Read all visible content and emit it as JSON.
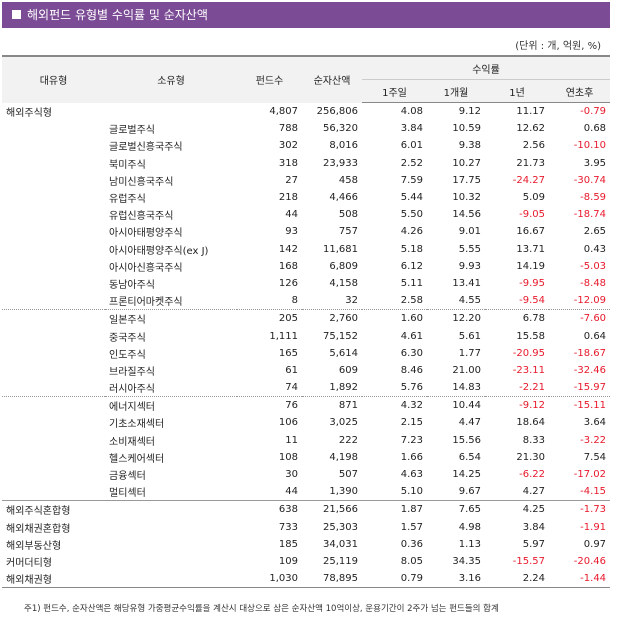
{
  "title": "해외펀드 유형별 수익률 및 순자산액",
  "unit": "(단위 : 개, 억원, %)",
  "headers": {
    "major": "대유형",
    "minor": "소유형",
    "funds": "펀드수",
    "assets": "순자산액",
    "returns": "수익률",
    "w1": "1주일",
    "m1": "1개월",
    "y1": "1년",
    "ytd": "연초후"
  },
  "rows": [
    {
      "cat": "해외주식형",
      "sub": "",
      "funds": "4,807",
      "assets": "256,806",
      "w1": "4.08",
      "m1": "9.12",
      "y1": "11.17",
      "ytd": "-0.79",
      "sep": ""
    },
    {
      "cat": "",
      "sub": "글로벌주식",
      "funds": "788",
      "assets": "56,320",
      "w1": "3.84",
      "m1": "10.59",
      "y1": "12.62",
      "ytd": "0.68",
      "sep": ""
    },
    {
      "cat": "",
      "sub": "글로벌신흥국주식",
      "funds": "302",
      "assets": "8,016",
      "w1": "6.01",
      "m1": "9.38",
      "y1": "2.56",
      "ytd": "-10.10",
      "sep": ""
    },
    {
      "cat": "",
      "sub": "북미주식",
      "funds": "318",
      "assets": "23,933",
      "w1": "2.52",
      "m1": "10.27",
      "y1": "21.73",
      "ytd": "3.95",
      "sep": ""
    },
    {
      "cat": "",
      "sub": "남미신흥국주식",
      "funds": "27",
      "assets": "458",
      "w1": "7.59",
      "m1": "17.75",
      "y1": "-24.27",
      "ytd": "-30.74",
      "sep": ""
    },
    {
      "cat": "",
      "sub": "유럽주식",
      "funds": "218",
      "assets": "4,466",
      "w1": "5.44",
      "m1": "10.32",
      "y1": "5.09",
      "ytd": "-8.59",
      "sep": ""
    },
    {
      "cat": "",
      "sub": "유럽신흥국주식",
      "funds": "44",
      "assets": "508",
      "w1": "5.50",
      "m1": "14.56",
      "y1": "-9.05",
      "ytd": "-18.74",
      "sep": ""
    },
    {
      "cat": "",
      "sub": "아시아태평양주식",
      "funds": "93",
      "assets": "757",
      "w1": "4.26",
      "m1": "9.01",
      "y1": "16.67",
      "ytd": "2.65",
      "sep": ""
    },
    {
      "cat": "",
      "sub": "아시아태평양주식(ex J)",
      "funds": "142",
      "assets": "11,681",
      "w1": "5.18",
      "m1": "5.55",
      "y1": "13.71",
      "ytd": "0.43",
      "sep": ""
    },
    {
      "cat": "",
      "sub": "아시아신흥국주식",
      "funds": "168",
      "assets": "6,809",
      "w1": "6.12",
      "m1": "9.93",
      "y1": "14.19",
      "ytd": "-5.03",
      "sep": ""
    },
    {
      "cat": "",
      "sub": "동남아주식",
      "funds": "126",
      "assets": "4,158",
      "w1": "5.11",
      "m1": "13.41",
      "y1": "-9.95",
      "ytd": "-8.48",
      "sep": ""
    },
    {
      "cat": "",
      "sub": "프론티어마켓주식",
      "funds": "8",
      "assets": "32",
      "w1": "2.58",
      "m1": "4.55",
      "y1": "-9.54",
      "ytd": "-12.09",
      "sep": ""
    },
    {
      "cat": "",
      "sub": "일본주식",
      "funds": "205",
      "assets": "2,760",
      "w1": "1.60",
      "m1": "12.20",
      "y1": "6.78",
      "ytd": "-7.60",
      "sep": "dash"
    },
    {
      "cat": "",
      "sub": "중국주식",
      "funds": "1,111",
      "assets": "75,152",
      "w1": "4.61",
      "m1": "5.61",
      "y1": "15.58",
      "ytd": "0.64",
      "sep": ""
    },
    {
      "cat": "",
      "sub": "인도주식",
      "funds": "165",
      "assets": "5,614",
      "w1": "6.30",
      "m1": "1.77",
      "y1": "-20.95",
      "ytd": "-18.67",
      "sep": ""
    },
    {
      "cat": "",
      "sub": "브라질주식",
      "funds": "61",
      "assets": "609",
      "w1": "8.46",
      "m1": "21.00",
      "y1": "-23.11",
      "ytd": "-32.46",
      "sep": ""
    },
    {
      "cat": "",
      "sub": "러시아주식",
      "funds": "74",
      "assets": "1,892",
      "w1": "5.76",
      "m1": "14.83",
      "y1": "-2.21",
      "ytd": "-15.97",
      "sep": ""
    },
    {
      "cat": "",
      "sub": "에너지섹터",
      "funds": "76",
      "assets": "871",
      "w1": "4.32",
      "m1": "10.44",
      "y1": "-9.12",
      "ytd": "-15.11",
      "sep": "dash"
    },
    {
      "cat": "",
      "sub": "기초소재섹터",
      "funds": "106",
      "assets": "3,025",
      "w1": "2.15",
      "m1": "4.47",
      "y1": "18.64",
      "ytd": "3.64",
      "sep": ""
    },
    {
      "cat": "",
      "sub": "소비재섹터",
      "funds": "11",
      "assets": "222",
      "w1": "7.23",
      "m1": "15.56",
      "y1": "8.33",
      "ytd": "-3.22",
      "sep": ""
    },
    {
      "cat": "",
      "sub": "헬스케어섹터",
      "funds": "108",
      "assets": "4,198",
      "w1": "1.66",
      "m1": "6.54",
      "y1": "21.30",
      "ytd": "7.54",
      "sep": ""
    },
    {
      "cat": "",
      "sub": "금융섹터",
      "funds": "30",
      "assets": "507",
      "w1": "4.63",
      "m1": "14.25",
      "y1": "-6.22",
      "ytd": "-17.02",
      "sep": ""
    },
    {
      "cat": "",
      "sub": "멀티섹터",
      "funds": "44",
      "assets": "1,390",
      "w1": "5.10",
      "m1": "9.67",
      "y1": "4.27",
      "ytd": "-4.15",
      "sep": ""
    },
    {
      "cat": "해외주식혼합형",
      "sub": "",
      "funds": "638",
      "assets": "21,566",
      "w1": "1.87",
      "m1": "7.65",
      "y1": "4.25",
      "ytd": "-1.73",
      "sep": "topline"
    },
    {
      "cat": "해외채권혼합형",
      "sub": "",
      "funds": "733",
      "assets": "25,303",
      "w1": "1.57",
      "m1": "4.98",
      "y1": "3.84",
      "ytd": "-1.91",
      "sep": ""
    },
    {
      "cat": "해외부동산형",
      "sub": "",
      "funds": "185",
      "assets": "34,031",
      "w1": "0.36",
      "m1": "1.13",
      "y1": "5.97",
      "ytd": "0.97",
      "sep": ""
    },
    {
      "cat": "커머더티형",
      "sub": "",
      "funds": "109",
      "assets": "25,119",
      "w1": "8.05",
      "m1": "34.35",
      "y1": "-15.57",
      "ytd": "-20.46",
      "sep": ""
    },
    {
      "cat": "해외채권형",
      "sub": "",
      "funds": "1,030",
      "assets": "78,895",
      "w1": "0.79",
      "m1": "3.16",
      "y1": "2.24",
      "ytd": "-1.44",
      "sep": ""
    }
  ],
  "note": "주1) 펀드수, 순자산액은 해당유형 가중평균수익률을 계산시 대상으로 삼은 순자산액 10억이상, 운용기간이 2주가 넘는 펀드들의 합계"
}
